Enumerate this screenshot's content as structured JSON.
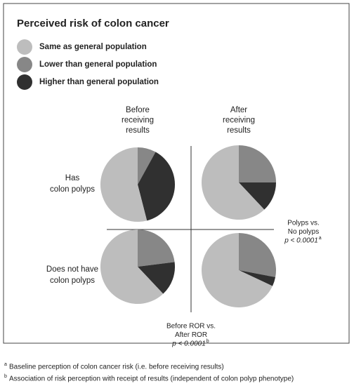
{
  "chart_data": {
    "type": "pie",
    "title": "Perceived risk of colon cancer",
    "categories": [
      "Same as general population",
      "Lower than general population",
      "Higher than general population"
    ],
    "colors": [
      "#bdbdbd",
      "#878787",
      "#303030"
    ],
    "column_labels": [
      [
        "Before",
        "receiving",
        "results"
      ],
      [
        "After",
        "receiving",
        "results"
      ]
    ],
    "row_labels": [
      [
        "Has",
        "colon polyps"
      ],
      [
        "Does not have",
        "colon polyps"
      ]
    ],
    "pies": [
      {
        "values": [
          54,
          8,
          38
        ]
      },
      {
        "values": [
          62,
          25,
          13
        ]
      },
      {
        "values": [
          62,
          23,
          15
        ]
      },
      {
        "values": [
          68,
          28,
          4
        ]
      }
    ],
    "annotations": [
      {
        "lines": [
          "Polyps vs.",
          "No polyps"
        ],
        "p": "p < 0.0001",
        "mark": "a"
      },
      {
        "lines": [
          "Before ROR vs.",
          "After ROR"
        ],
        "p": "p < 0.0001",
        "mark": "b"
      }
    ],
    "footnotes": [
      {
        "mark": "a",
        "text": "Baseline perception of colon cancer risk (i.e. before receiving results)"
      },
      {
        "mark": "b",
        "text": "Association of risk perception with receipt of results (independent of colon polyp phenotype)"
      }
    ]
  }
}
